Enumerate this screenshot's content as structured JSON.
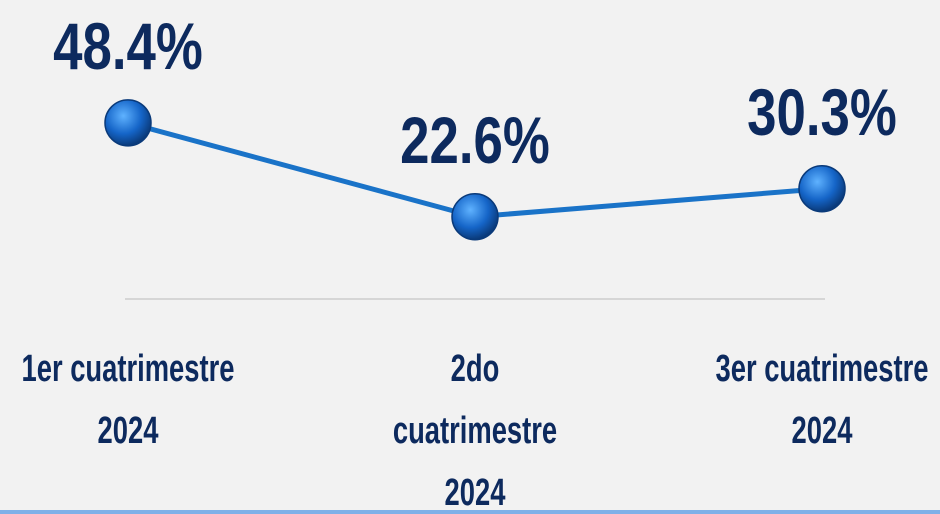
{
  "chart_data": {
    "type": "line",
    "categories": [
      "1er cuatrimestre 2024",
      "2do cuatrimestre 2024",
      "3er cuatrimestre 2024"
    ],
    "series": [
      {
        "color": "#1a73c8",
        "values": [
          48.4,
          22.6,
          30.3
        ],
        "value_labels": [
          "48.4%",
          "22.6%",
          "30.3%"
        ]
      }
    ]
  }
}
